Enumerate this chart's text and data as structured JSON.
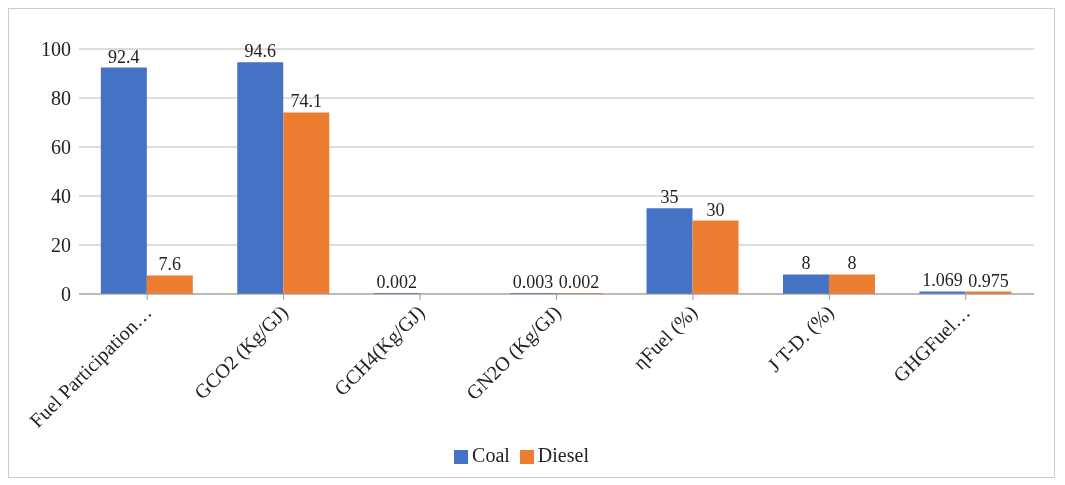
{
  "chart_data": {
    "type": "bar",
    "categories": [
      "Fuel Participation…",
      "GCO2 (Kg/GJ)",
      "GCH4(Kg/GJ)",
      "GN2O (Kg/GJ)",
      "ηFuel (%)",
      "J T-D. (%)",
      "GHGFuel…"
    ],
    "series": [
      {
        "name": "Coal",
        "color": "#4472c4",
        "values": [
          92.4,
          94.6,
          0.002,
          0.003,
          35,
          8,
          1.069
        ]
      },
      {
        "name": "Diesel",
        "color": "#ed7d31",
        "values": [
          7.6,
          74.1,
          null,
          0.002,
          30,
          8,
          0.975
        ]
      }
    ],
    "ylim": [
      0,
      100
    ],
    "yticks": [
      0,
      20,
      40,
      60,
      80,
      100
    ],
    "grid": "y",
    "legend": "bottom",
    "data_labels": true
  }
}
